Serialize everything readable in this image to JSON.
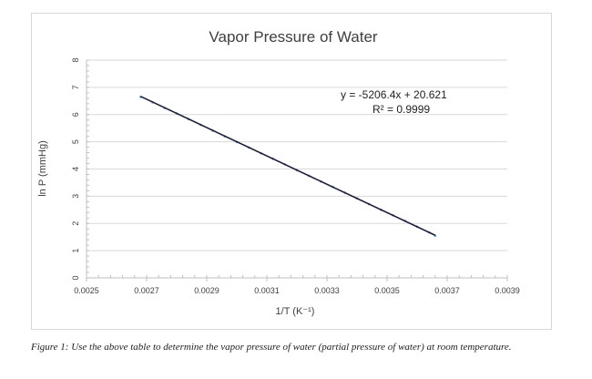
{
  "chart_data": {
    "type": "scatter",
    "title": "Vapor Pressure of Water",
    "xlabel": "1/T (K⁻¹)",
    "ylabel": "ln P (mmHg)",
    "xlim": [
      0.0025,
      0.0039
    ],
    "ylim": [
      0,
      8
    ],
    "x_ticks": [
      "0.0025",
      "0.0027",
      "0.0029",
      "0.0031",
      "0.0033",
      "0.0035",
      "0.0037",
      "0.0039"
    ],
    "y_ticks": [
      "0",
      "1",
      "2",
      "3",
      "4",
      "5",
      "6",
      "7",
      "8"
    ],
    "grid": "horizontal",
    "series": [
      {
        "points": [
          [
            0.00268,
            6.65
          ],
          [
            0.00272,
            6.45
          ],
          [
            0.00276,
            6.24
          ],
          [
            0.0028,
            6.04
          ],
          [
            0.00284,
            5.83
          ],
          [
            0.00288,
            5.62
          ],
          [
            0.00292,
            5.41
          ],
          [
            0.00296,
            5.2
          ],
          [
            0.003,
            4.99
          ],
          [
            0.00304,
            4.79
          ],
          [
            0.00308,
            4.58
          ],
          [
            0.00312,
            4.38
          ],
          [
            0.00316,
            4.17
          ],
          [
            0.0032,
            3.96
          ],
          [
            0.00324,
            3.75
          ],
          [
            0.00328,
            3.54
          ],
          [
            0.00332,
            3.34
          ],
          [
            0.00336,
            3.13
          ],
          [
            0.0034,
            2.92
          ],
          [
            0.00344,
            2.71
          ],
          [
            0.00348,
            2.5
          ],
          [
            0.00352,
            2.3
          ],
          [
            0.00356,
            2.09
          ],
          [
            0.0036,
            1.88
          ],
          [
            0.00364,
            1.67
          ],
          [
            0.00366,
            1.55
          ]
        ],
        "color": "#5b9bd5"
      }
    ],
    "trendline": {
      "type": "linear",
      "x_range": [
        0.00268,
        0.00366
      ],
      "slope": -5206.4,
      "intercept": 20.621,
      "color": "#1f1f3a",
      "equation": "y = -5206.4x + 20.621",
      "r_squared": "R² = 0.9999"
    }
  },
  "caption": "Figure 1: Use the above table to determine the vapor pressure of water (partial pressure of water) at room temperature."
}
